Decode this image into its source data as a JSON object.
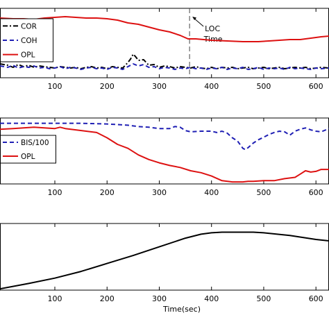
{
  "chart_data": [
    {
      "type": "line",
      "xlim": [
        -5,
        625
      ],
      "xticks": [
        100,
        200,
        300,
        400,
        500,
        600
      ],
      "xlabel": "",
      "legend": {
        "placement": "top-left"
      },
      "annotation": {
        "x": 358,
        "line1": "LOC",
        "line2": "Time"
      },
      "series": [
        {
          "name": "COR",
          "color": "#000000",
          "dash": "7,3,2,3",
          "x": [
            -5,
            10,
            20,
            30,
            40,
            50,
            60,
            70,
            80,
            90,
            100,
            110,
            120,
            130,
            140,
            150,
            160,
            170,
            180,
            190,
            200,
            210,
            220,
            230,
            240,
            245,
            250,
            255,
            260,
            270,
            280,
            290,
            300,
            310,
            320,
            330,
            340,
            350,
            360,
            370,
            380,
            390,
            400,
            410,
            420,
            430,
            440,
            450,
            460,
            470,
            480,
            490,
            500,
            510,
            520,
            530,
            540,
            550,
            560,
            570,
            580,
            590,
            600,
            610,
            625
          ],
          "y": [
            0.2,
            0.18,
            0.15,
            0.19,
            0.16,
            0.18,
            0.15,
            0.17,
            0.16,
            0.15,
            0.14,
            0.16,
            0.15,
            0.14,
            0.15,
            0.13,
            0.15,
            0.16,
            0.14,
            0.15,
            0.13,
            0.16,
            0.15,
            0.14,
            0.22,
            0.27,
            0.34,
            0.3,
            0.25,
            0.26,
            0.18,
            0.19,
            0.15,
            0.17,
            0.16,
            0.14,
            0.16,
            0.15,
            0.14,
            0.16,
            0.14,
            0.13,
            0.15,
            0.13,
            0.15,
            0.14,
            0.15,
            0.13,
            0.14,
            0.15,
            0.13,
            0.14,
            0.15,
            0.13,
            0.14,
            0.15,
            0.13,
            0.14,
            0.15,
            0.14,
            0.15,
            0.13,
            0.14,
            0.15,
            0.14
          ]
        },
        {
          "name": "COH",
          "color": "#1f1fb4",
          "dash": "6,4",
          "x": [
            -5,
            10,
            20,
            30,
            40,
            50,
            60,
            70,
            80,
            90,
            100,
            110,
            120,
            130,
            140,
            150,
            160,
            170,
            180,
            190,
            200,
            210,
            220,
            230,
            240,
            250,
            260,
            270,
            280,
            290,
            300,
            310,
            320,
            330,
            340,
            350,
            360,
            370,
            380,
            390,
            400,
            410,
            420,
            430,
            440,
            450,
            460,
            470,
            480,
            490,
            500,
            510,
            520,
            530,
            540,
            550,
            560,
            570,
            580,
            590,
            600,
            610,
            625
          ],
          "y": [
            0.17,
            0.15,
            0.18,
            0.14,
            0.16,
            0.15,
            0.17,
            0.14,
            0.15,
            0.13,
            0.14,
            0.16,
            0.13,
            0.15,
            0.14,
            0.12,
            0.14,
            0.15,
            0.13,
            0.14,
            0.12,
            0.15,
            0.14,
            0.12,
            0.16,
            0.2,
            0.17,
            0.19,
            0.15,
            0.16,
            0.13,
            0.15,
            0.14,
            0.12,
            0.14,
            0.13,
            0.15,
            0.13,
            0.14,
            0.12,
            0.14,
            0.13,
            0.15,
            0.12,
            0.14,
            0.13,
            0.15,
            0.12,
            0.13,
            0.15,
            0.12,
            0.14,
            0.13,
            0.14,
            0.12,
            0.15,
            0.13,
            0.14,
            0.13,
            0.12,
            0.14,
            0.13,
            0.14
          ]
        },
        {
          "name": "OPL",
          "color": "#dd1111",
          "dash": "",
          "x": [
            -5,
            20,
            40,
            60,
            80,
            100,
            120,
            140,
            160,
            180,
            200,
            220,
            240,
            260,
            280,
            300,
            320,
            340,
            355,
            370,
            400,
            430,
            460,
            490,
            510,
            530,
            550,
            570,
            590,
            610,
            625
          ],
          "y": [
            0.86,
            0.85,
            0.85,
            0.84,
            0.86,
            0.87,
            0.88,
            0.87,
            0.86,
            0.86,
            0.85,
            0.83,
            0.79,
            0.77,
            0.73,
            0.69,
            0.66,
            0.61,
            0.56,
            0.56,
            0.54,
            0.53,
            0.52,
            0.52,
            0.53,
            0.54,
            0.55,
            0.55,
            0.57,
            0.59,
            0.6
          ]
        }
      ]
    },
    {
      "type": "line",
      "xlim": [
        -5,
        625
      ],
      "xticks": [
        100,
        200,
        300,
        400,
        500,
        600
      ],
      "xlabel": "",
      "legend": {
        "placement": "middle-left"
      },
      "series": [
        {
          "name": "BIS/100",
          "color": "#1f1fb4",
          "dash": "6,4",
          "x": [
            -5,
            50,
            100,
            150,
            200,
            220,
            240,
            260,
            280,
            300,
            320,
            330,
            340,
            350,
            360,
            380,
            400,
            410,
            420,
            430,
            440,
            450,
            460,
            465,
            470,
            480,
            490,
            500,
            510,
            520,
            530,
            540,
            550,
            560,
            570,
            580,
            590,
            600,
            610,
            625
          ],
          "y": [
            0.92,
            0.92,
            0.92,
            0.92,
            0.91,
            0.9,
            0.89,
            0.87,
            0.86,
            0.84,
            0.84,
            0.87,
            0.86,
            0.81,
            0.79,
            0.8,
            0.8,
            0.78,
            0.8,
            0.77,
            0.7,
            0.65,
            0.54,
            0.52,
            0.55,
            0.62,
            0.67,
            0.71,
            0.75,
            0.78,
            0.8,
            0.79,
            0.74,
            0.8,
            0.83,
            0.85,
            0.82,
            0.8,
            0.79,
            0.84
          ]
        },
        {
          "name": "OPL",
          "color": "#dd1111",
          "dash": "",
          "x": [
            -5,
            20,
            40,
            60,
            80,
            100,
            110,
            120,
            140,
            160,
            180,
            200,
            220,
            240,
            260,
            280,
            300,
            320,
            340,
            360,
            380,
            400,
            420,
            440,
            460,
            470,
            480,
            500,
            510,
            520,
            540,
            560,
            570,
            580,
            590,
            600,
            610,
            625
          ],
          "y": [
            0.83,
            0.84,
            0.85,
            0.86,
            0.85,
            0.84,
            0.86,
            0.84,
            0.82,
            0.8,
            0.78,
            0.7,
            0.6,
            0.54,
            0.44,
            0.37,
            0.32,
            0.28,
            0.25,
            0.2,
            0.17,
            0.12,
            0.05,
            0.03,
            0.03,
            0.04,
            0.04,
            0.05,
            0.05,
            0.05,
            0.08,
            0.1,
            0.15,
            0.2,
            0.18,
            0.19,
            0.22,
            0.22
          ]
        }
      ]
    },
    {
      "type": "line",
      "xlim": [
        -5,
        625
      ],
      "xticks": [
        100,
        200,
        300,
        400,
        500,
        600
      ],
      "xlabel": "Time(sec)",
      "series": [
        {
          "name": "",
          "color": "#000000",
          "dash": "",
          "x": [
            -5,
            50,
            100,
            150,
            200,
            250,
            300,
            350,
            380,
            400,
            420,
            450,
            480,
            500,
            550,
            600,
            625
          ],
          "y": [
            0.02,
            0.1,
            0.18,
            0.28,
            0.4,
            0.52,
            0.65,
            0.78,
            0.84,
            0.86,
            0.87,
            0.87,
            0.87,
            0.86,
            0.82,
            0.76,
            0.74
          ]
        }
      ]
    }
  ]
}
